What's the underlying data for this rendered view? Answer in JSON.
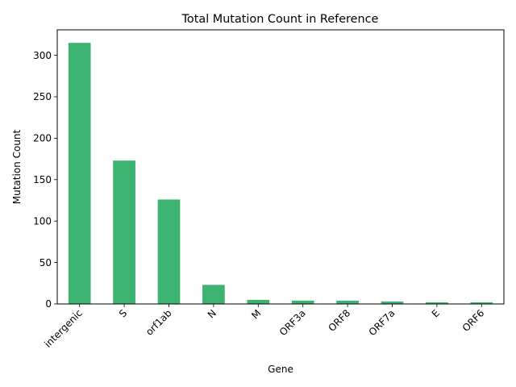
{
  "chart_data": {
    "type": "bar",
    "title": "Total Mutation Count in Reference",
    "xlabel": "Gene",
    "ylabel": "Mutation Count",
    "categories": [
      "intergenic",
      "S",
      "orf1ab",
      "N",
      "M",
      "ORF3a",
      "ORF8",
      "ORF7a",
      "E",
      "ORF6"
    ],
    "values": [
      315,
      173,
      126,
      23,
      5,
      4,
      4,
      3,
      2,
      2
    ],
    "ylim": [
      0,
      330.75
    ],
    "yticks": [
      0,
      50,
      100,
      150,
      200,
      250,
      300
    ],
    "bar_color": "#3cb371",
    "grid": false,
    "legend": "none"
  }
}
